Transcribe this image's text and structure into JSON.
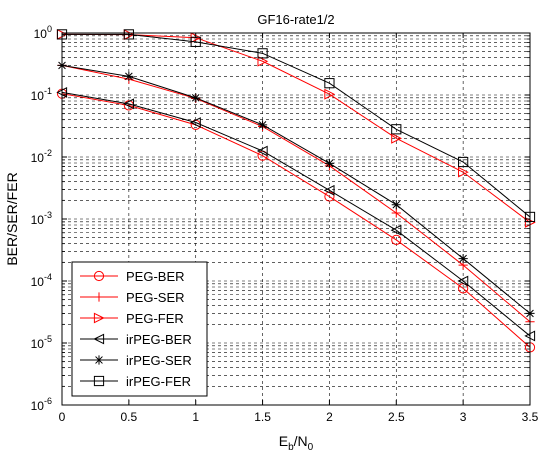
{
  "chart_data": {
    "type": "line",
    "title": "GF16-rate1/2",
    "xlabel": {
      "main": "E",
      "sub1": "b",
      "sep": "/N",
      "sub2": "0"
    },
    "ylabel": "BER/SER/FER",
    "xlim": [
      0,
      3.5
    ],
    "ylim_log10": [
      -6,
      0
    ],
    "y_scale": "log",
    "grid": true,
    "grid_style": "dashed",
    "legend_position": "bottom-left",
    "x_ticks": [
      "0",
      "0.5",
      "1",
      "1.5",
      "2",
      "2.5",
      "3",
      "3.5"
    ],
    "y_ticks": [
      {
        "base": "10",
        "exp": "-6"
      },
      {
        "base": "10",
        "exp": "-5"
      },
      {
        "base": "10",
        "exp": "-4"
      },
      {
        "base": "10",
        "exp": "-3"
      },
      {
        "base": "10",
        "exp": "-2"
      },
      {
        "base": "10",
        "exp": "-1"
      },
      {
        "base": "10",
        "exp": "0"
      }
    ],
    "x": [
      0,
      0.5,
      1,
      1.5,
      2,
      2.5,
      3,
      3.5
    ],
    "series": [
      {
        "name": "PEG-BER",
        "color": "#ff0000",
        "marker": "circle",
        "values": [
          0.105,
          0.068,
          0.033,
          0.0105,
          0.0023,
          0.00046,
          7.6e-05,
          8.5e-06
        ]
      },
      {
        "name": "PEG-SER",
        "color": "#ff0000",
        "marker": "plus",
        "values": [
          0.3,
          0.18,
          0.088,
          0.031,
          0.0072,
          0.00125,
          0.00018,
          2.2e-05
        ]
      },
      {
        "name": "PEG-FER",
        "color": "#ff0000",
        "marker": "triangle-right",
        "values": [
          0.95,
          0.94,
          0.84,
          0.35,
          0.103,
          0.02,
          0.0057,
          0.00088
        ]
      },
      {
        "name": "irPEG-BER",
        "color": "#000000",
        "marker": "triangle-left",
        "values": [
          0.11,
          0.072,
          0.036,
          0.0125,
          0.0029,
          0.00066,
          0.0001,
          1.3e-05
        ]
      },
      {
        "name": "irPEG-SER",
        "color": "#000000",
        "marker": "star",
        "values": [
          0.3,
          0.2,
          0.09,
          0.033,
          0.0079,
          0.0017,
          0.00023,
          3e-05
        ]
      },
      {
        "name": "irPEG-FER",
        "color": "#000000",
        "marker": "square",
        "values": [
          0.95,
          0.95,
          0.72,
          0.47,
          0.155,
          0.028,
          0.0083,
          0.00108
        ]
      }
    ]
  }
}
